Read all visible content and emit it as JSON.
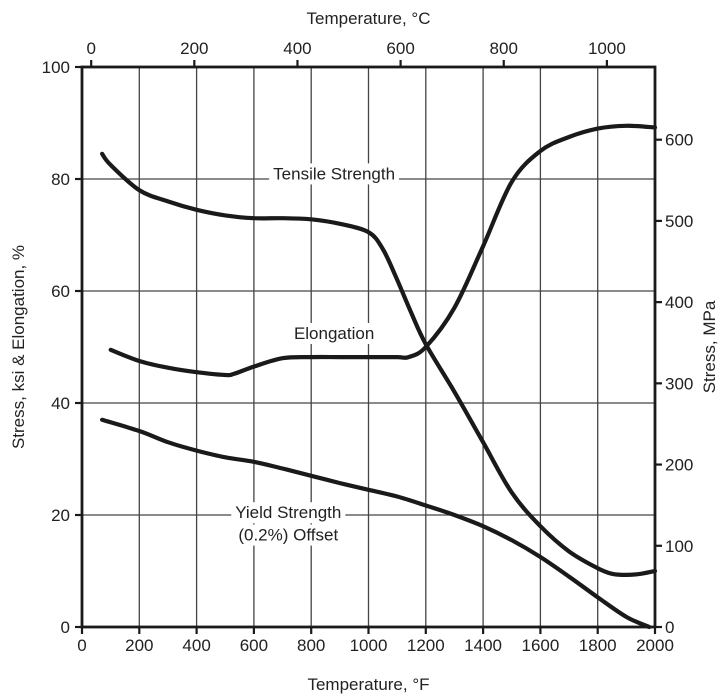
{
  "chart_data": {
    "type": "line",
    "x_bottom": {
      "label": "Temperature, °F",
      "range": [
        0,
        2000
      ],
      "ticks": [
        "0",
        "200",
        "400",
        "600",
        "800",
        "1000",
        "1200",
        "1400",
        "1600",
        "1800",
        "2000"
      ]
    },
    "x_top": {
      "label": "Temperature, °C",
      "range": [
        -17.8,
        1093.3
      ],
      "ticks": [
        "0",
        "200",
        "400",
        "600",
        "800",
        "1000"
      ]
    },
    "y_left": {
      "label": "Stress, ksi & Elongation, %",
      "range": [
        0,
        100
      ],
      "ticks": [
        "0",
        "20",
        "40",
        "60",
        "80",
        "100"
      ]
    },
    "y_right": {
      "label": "Stress, MPa",
      "range": [
        0,
        689.5
      ],
      "ticks": [
        "0",
        "100",
        "200",
        "300",
        "400",
        "500",
        "600"
      ]
    },
    "grid": true,
    "series": [
      {
        "name": "Tensile Strength",
        "x": [
          70,
          100,
          200,
          300,
          400,
          500,
          600,
          700,
          800,
          900,
          1000,
          1050,
          1100,
          1150,
          1200,
          1300,
          1400,
          1500,
          1600,
          1700,
          1800,
          1850,
          1900,
          1950,
          2000
        ],
        "y": [
          84.5,
          82.5,
          78,
          76,
          74.5,
          73.5,
          73,
          73,
          72.8,
          72,
          70.5,
          67.5,
          62,
          56,
          50.5,
          42,
          33,
          24,
          18,
          13.5,
          10.5,
          9.5,
          9.3,
          9.5,
          10
        ]
      },
      {
        "name": "Elongation",
        "x": [
          100,
          200,
          300,
          400,
          500,
          530,
          600,
          700,
          800,
          900,
          1000,
          1100,
          1140,
          1200,
          1300,
          1400,
          1500,
          1600,
          1700,
          1800,
          1900,
          2000
        ],
        "y": [
          49.5,
          47.5,
          46.3,
          45.5,
          45,
          45.2,
          46.5,
          48,
          48.2,
          48.2,
          48.2,
          48.2,
          48.2,
          50,
          57,
          68,
          79.5,
          85,
          87.5,
          89,
          89.5,
          89.2
        ]
      },
      {
        "name": "Yield Strength (0.2%) Offset",
        "x": [
          70,
          200,
          300,
          400,
          500,
          600,
          700,
          800,
          900,
          1000,
          1100,
          1200,
          1300,
          1400,
          1500,
          1600,
          1700,
          1800,
          1900,
          1980
        ],
        "y": [
          37,
          35,
          33,
          31.5,
          30.3,
          29.5,
          28.3,
          27,
          25.7,
          24.5,
          23.3,
          21.7,
          20,
          18,
          15.5,
          12.5,
          9,
          5.3,
          1.8,
          0
        ]
      }
    ],
    "annotations": [
      {
        "text": "Tensile Strength",
        "x": 880,
        "y": 81
      },
      {
        "text": "Elongation",
        "x": 880,
        "y": 52.5
      },
      {
        "text": "Yield Strength",
        "x": 720,
        "y": 20.5
      },
      {
        "text": "(0.2%) Offset",
        "x": 720,
        "y": 16.5
      }
    ]
  }
}
